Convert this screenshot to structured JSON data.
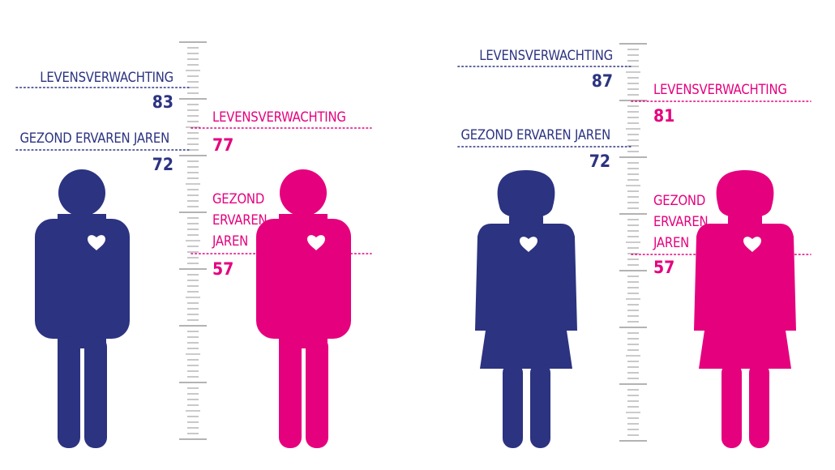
{
  "colors": {
    "group_a": "#2c3381",
    "group_b": "#e5007e",
    "ruler": "#9a9a9a"
  },
  "icons": [
    "male-figure-icon",
    "female-figure-icon",
    "heart-icon",
    "ruler-scale"
  ],
  "panels": [
    {
      "figure": "male",
      "a": {
        "life_label": "LEVENSVERWACHTING",
        "life_value": "83",
        "healthy_label": "GEZOND ERVAREN JAREN",
        "healthy_value": "72"
      },
      "b": {
        "life_label": "LEVENSVERWACHTING",
        "life_value": "77",
        "healthy_label": "GEZOND ERVAREN JAREN",
        "healthy_value": "57"
      }
    },
    {
      "figure": "female",
      "a": {
        "life_label": "LEVENSVERWACHTING",
        "life_value": "87",
        "healthy_label": "GEZOND ERVAREN JAREN",
        "healthy_value": "72"
      },
      "b": {
        "life_label": "LEVENSVERWACHTING",
        "life_value": "81",
        "healthy_label": "GEZOND ERVAREN JAREN",
        "healthy_value": "57"
      }
    }
  ]
}
